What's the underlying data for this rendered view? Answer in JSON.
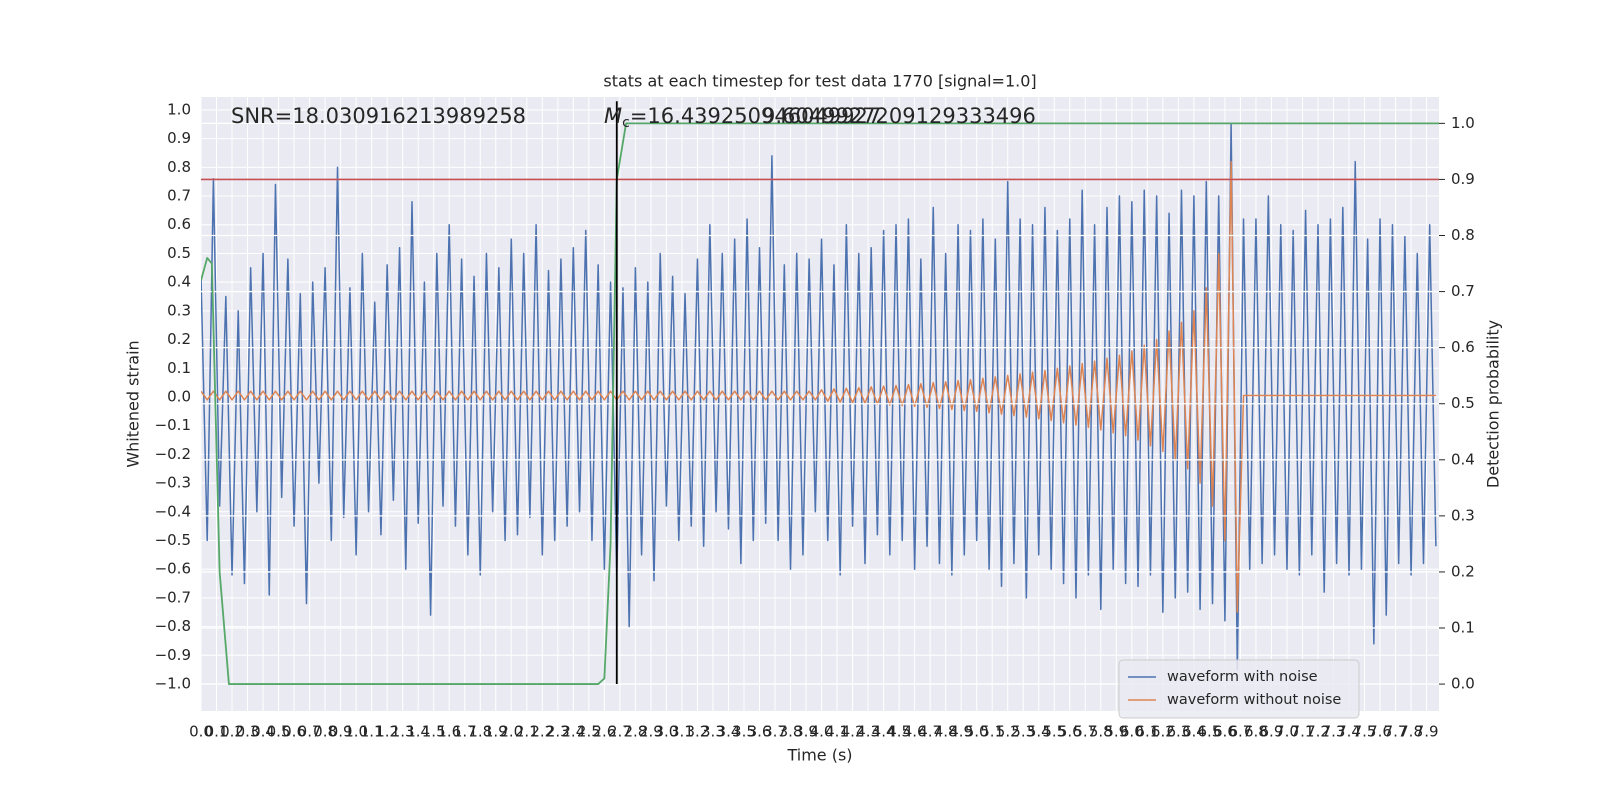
{
  "chart_data": {
    "type": "line",
    "title": "stats at each timestep for test data 1770 [signal=1.0]",
    "xlabel": "Time (s)",
    "ylabel": "Whitened strain",
    "y2label": "Detection probability",
    "annotations": [
      {
        "text": "SNR=18.030916213989258"
      },
      {
        "symbol": "M",
        "subscript": "c",
        "text": "=16.439250946049927"
      },
      {
        "text": "9.6049927209129333496"
      }
    ],
    "grid": true,
    "y2grid": true,
    "legend": "lower right",
    "xlim": [
      0,
      7.98
    ],
    "ylim": [
      -1.094,
      1.045
    ],
    "y2lim": [
      -0.048,
      1.047
    ],
    "xticks": [
      {
        "value": 0,
        "label": "0.0"
      },
      0.1,
      0.2,
      0.3,
      0.4,
      0.5,
      0.6,
      0.7,
      0.8,
      0.9,
      {
        "value": 1,
        "label": "1.0"
      },
      1.1,
      1.2,
      1.3,
      1.4,
      1.5,
      1.6,
      1.7,
      1.8,
      1.9,
      {
        "value": 2,
        "label": "2.0"
      },
      2.1,
      2.2,
      2.3,
      2.4,
      2.5,
      2.6,
      2.7,
      2.8,
      2.9,
      {
        "value": 3,
        "label": "3.0"
      },
      3.1,
      3.2,
      3.3,
      3.4,
      3.5,
      3.6,
      3.7,
      3.8,
      3.9,
      {
        "value": 4,
        "label": "4.0"
      },
      4.1,
      4.2,
      4.3,
      4.4,
      4.5,
      4.6,
      4.7,
      4.8,
      4.9,
      {
        "value": 5,
        "label": "5.0"
      },
      5.1,
      5.2,
      5.3,
      5.4,
      5.5,
      5.6,
      5.7,
      5.8,
      5.9,
      {
        "value": 6,
        "label": "6.0"
      },
      6.1,
      6.2,
      6.3,
      6.4,
      6.5,
      6.6,
      6.7,
      6.8,
      6.9,
      {
        "value": 7,
        "label": "7.0"
      },
      7.1,
      7.2,
      7.3,
      7.4,
      7.5,
      7.6,
      7.7,
      7.8,
      7.9
    ],
    "yticks": [
      {
        "value": -1,
        "label": "−1.0"
      },
      {
        "value": -0.9,
        "label": "−0.9"
      },
      {
        "value": -0.8,
        "label": "−0.8"
      },
      {
        "value": -0.7,
        "label": "−0.7"
      },
      {
        "value": -0.6,
        "label": "−0.6"
      },
      {
        "value": -0.5,
        "label": "−0.5"
      },
      {
        "value": -0.4,
        "label": "−0.4"
      },
      {
        "value": -0.3,
        "label": "−0.3"
      },
      {
        "value": -0.2,
        "label": "−0.2"
      },
      {
        "value": -0.1,
        "label": "−0.1"
      },
      {
        "value": 0,
        "label": "0.0"
      },
      0.1,
      0.2,
      0.3,
      0.4,
      0.5,
      0.6,
      0.7,
      0.8,
      0.9,
      {
        "value": 1,
        "label": "1.0"
      }
    ],
    "y2ticks": [
      {
        "value": 0,
        "label": "0.0"
      },
      0.1,
      0.2,
      0.3,
      0.4,
      0.5,
      0.6,
      0.7,
      0.8,
      0.9,
      {
        "value": 1,
        "label": "1.0"
      }
    ],
    "x": [
      0,
      0.04,
      0.08,
      0.12,
      0.16,
      0.2,
      0.24,
      0.28,
      0.32,
      0.36,
      0.4,
      0.44,
      0.48,
      0.52,
      0.56,
      0.6,
      0.64,
      0.68,
      0.72,
      0.76,
      0.8,
      0.84,
      0.88,
      0.92,
      0.96,
      1,
      1.04,
      1.08,
      1.12,
      1.16,
      1.2,
      1.24,
      1.28,
      1.32,
      1.36,
      1.4,
      1.44,
      1.48,
      1.52,
      1.56,
      1.6,
      1.64,
      1.68,
      1.72,
      1.76,
      1.8,
      1.84,
      1.88,
      1.92,
      1.96,
      2,
      2.04,
      2.08,
      2.12,
      2.16,
      2.2,
      2.24,
      2.28,
      2.32,
      2.36,
      2.4,
      2.44,
      2.48,
      2.52,
      2.56,
      2.6,
      2.64,
      2.68,
      2.72,
      2.76,
      2.8,
      2.84,
      2.88,
      2.92,
      2.96,
      3,
      3.04,
      3.08,
      3.12,
      3.16,
      3.2,
      3.24,
      3.28,
      3.32,
      3.36,
      3.4,
      3.44,
      3.48,
      3.52,
      3.56,
      3.6,
      3.64,
      3.68,
      3.72,
      3.76,
      3.8,
      3.84,
      3.88,
      3.92,
      3.96,
      4,
      4.04,
      4.08,
      4.12,
      4.16,
      4.2,
      4.24,
      4.28,
      4.32,
      4.36,
      4.4,
      4.44,
      4.48,
      4.52,
      4.56,
      4.6,
      4.64,
      4.68,
      4.72,
      4.76,
      4.8,
      4.84,
      4.88,
      4.92,
      4.96,
      5,
      5.04,
      5.08,
      5.12,
      5.16,
      5.2,
      5.24,
      5.28,
      5.32,
      5.36,
      5.4,
      5.44,
      5.48,
      5.52,
      5.56,
      5.6,
      5.64,
      5.68,
      5.72,
      5.76,
      5.8,
      5.84,
      5.88,
      5.92,
      5.96,
      6,
      6.04,
      6.08,
      6.12,
      6.16,
      6.2,
      6.24,
      6.28,
      6.32,
      6.36,
      6.4,
      6.44,
      6.48,
      6.52,
      6.56,
      6.6,
      6.64,
      6.68,
      6.72,
      6.76,
      6.8,
      6.84,
      6.88,
      6.92,
      6.96,
      7,
      7.04,
      7.08,
      7.12,
      7.16,
      7.2,
      7.24,
      7.28,
      7.32,
      7.36,
      7.4,
      7.44,
      7.48,
      7.52,
      7.56,
      7.6,
      7.64,
      7.68,
      7.72,
      7.76,
      7.8,
      7.84,
      7.88,
      7.92,
      7.96
    ],
    "series": [
      {
        "name": "waveform with noise",
        "color": "#4c72b0",
        "values": [
          0.42,
          -0.5,
          0.76,
          -0.38,
          0.35,
          -0.62,
          0.3,
          -0.65,
          0.45,
          -0.4,
          0.5,
          -0.69,
          0.74,
          -0.35,
          0.48,
          -0.45,
          0.36,
          -0.72,
          0.4,
          -0.3,
          0.45,
          -0.5,
          0.8,
          -0.42,
          0.38,
          -0.55,
          0.5,
          -0.4,
          0.33,
          -0.48,
          0.46,
          -0.36,
          0.52,
          -0.6,
          0.68,
          -0.44,
          0.4,
          -0.76,
          0.5,
          -0.38,
          0.6,
          -0.45,
          0.48,
          -0.55,
          0.42,
          -0.62,
          0.5,
          -0.4,
          0.45,
          -0.5,
          0.55,
          -0.48,
          0.5,
          -0.42,
          0.6,
          -0.55,
          0.44,
          -0.5,
          0.48,
          -0.45,
          0.52,
          -0.4,
          0.58,
          -0.5,
          0.46,
          -0.6,
          0.4,
          -0.62,
          0.38,
          -0.8,
          0.45,
          -0.55,
          0.4,
          -0.64,
          0.5,
          -0.38,
          0.42,
          -0.5,
          0.36,
          -0.45,
          0.48,
          -0.52,
          0.6,
          -0.4,
          0.5,
          -0.46,
          0.55,
          -0.58,
          0.62,
          -0.5,
          0.52,
          -0.44,
          0.84,
          -0.5,
          0.46,
          -0.6,
          0.5,
          -0.55,
          0.48,
          -0.4,
          0.55,
          -0.5,
          0.46,
          -0.62,
          0.6,
          -0.45,
          0.5,
          -0.58,
          0.52,
          -0.48,
          0.58,
          -0.55,
          0.6,
          -0.5,
          0.62,
          -0.6,
          0.48,
          -0.52,
          0.66,
          -0.58,
          0.5,
          -0.62,
          0.6,
          -0.55,
          0.58,
          -0.5,
          0.62,
          -0.6,
          0.55,
          -0.66,
          0.75,
          -0.58,
          0.62,
          -0.7,
          0.6,
          -0.55,
          0.66,
          -0.6,
          0.58,
          -0.65,
          0.62,
          -0.7,
          0.72,
          -0.62,
          0.6,
          -0.74,
          0.66,
          -0.6,
          0.7,
          -0.65,
          0.68,
          -0.66,
          0.72,
          -0.62,
          0.7,
          -0.75,
          0.64,
          -0.7,
          0.72,
          -0.68,
          0.7,
          -0.74,
          0.75,
          -0.72,
          0.7,
          -0.78,
          0.95,
          -0.95,
          0.62,
          -0.6,
          0.62,
          -0.58,
          0.7,
          -0.55,
          0.6,
          -0.6,
          0.58,
          -0.62,
          0.65,
          -0.55,
          0.6,
          -0.68,
          0.62,
          -0.58,
          0.66,
          -0.62,
          0.82,
          -0.6,
          0.55,
          -0.86,
          0.62,
          -0.76,
          0.6,
          -0.58,
          0.56,
          -0.62,
          0.5,
          -0.58,
          0.6,
          -0.52
        ]
      },
      {
        "name": "waveform without noise",
        "color": "#dd8452",
        "values": [
          0.02,
          -0.01,
          0.02,
          -0.01,
          0.02,
          -0.01,
          0.02,
          -0.01,
          0.02,
          -0.01,
          0.02,
          -0.01,
          0.02,
          -0.01,
          0.02,
          -0.01,
          0.02,
          -0.01,
          0.02,
          -0.01,
          0.02,
          -0.01,
          0.02,
          -0.01,
          0.02,
          -0.01,
          0.02,
          -0.01,
          0.02,
          -0.01,
          0.02,
          -0.01,
          0.02,
          -0.01,
          0.02,
          -0.01,
          0.02,
          -0.01,
          0.02,
          -0.01,
          0.02,
          -0.01,
          0.02,
          -0.01,
          0.02,
          -0.01,
          0.02,
          -0.01,
          0.02,
          -0.01,
          0.02,
          -0.01,
          0.02,
          -0.01,
          0.02,
          -0.01,
          0.02,
          -0.01,
          0.02,
          -0.01,
          0.02,
          -0.01,
          0.02,
          -0.01,
          0.02,
          -0.01,
          0.02,
          -0.01,
          0.02,
          -0.01,
          0.02,
          -0.01,
          0.02,
          -0.01,
          0.02,
          -0.01,
          0.02,
          -0.01,
          0.02,
          -0.01,
          0.02,
          -0.01,
          0.02,
          -0.01,
          0.02,
          -0.01,
          0.02,
          -0.01,
          0.02,
          -0.01,
          0.02,
          -0.01,
          0.02,
          -0.01,
          0.02,
          -0.01,
          0.02,
          -0.01,
          0.02,
          -0.01,
          0.025,
          -0.015,
          0.028,
          -0.018,
          0.03,
          -0.02,
          0.032,
          -0.022,
          0.035,
          -0.025,
          0.038,
          -0.028,
          0.04,
          -0.03,
          0.043,
          -0.033,
          0.046,
          -0.036,
          0.05,
          -0.04,
          0.053,
          -0.043,
          0.057,
          -0.047,
          0.06,
          -0.05,
          0.065,
          -0.055,
          0.07,
          -0.06,
          0.075,
          -0.065,
          0.08,
          -0.07,
          0.086,
          -0.076,
          0.092,
          -0.082,
          0.1,
          -0.09,
          0.108,
          -0.098,
          0.116,
          -0.106,
          0.125,
          -0.115,
          0.135,
          -0.125,
          0.145,
          -0.135,
          0.16,
          -0.15,
          0.18,
          -0.17,
          0.2,
          -0.19,
          0.23,
          -0.22,
          0.26,
          -0.25,
          0.3,
          -0.3,
          0.38,
          -0.38,
          0.5,
          -0.5,
          0.82,
          -0.75,
          0.005,
          0.005,
          0.005,
          0.005,
          0.005,
          0.005,
          0.005,
          0.005,
          0.005,
          0.005,
          0.005,
          0.005,
          0.005,
          0.005,
          0.005,
          0.005,
          0.005,
          0.005,
          0.005,
          0.005,
          0.005,
          0.005,
          0.005,
          0.005,
          0.005,
          0.005,
          0.005,
          0.005,
          0.005,
          0.005,
          0.005,
          0.005
        ]
      },
      {
        "color": "#55a868",
        "axis": "y2",
        "x": [
          0,
          0.04,
          0.07,
          0.12,
          0.18,
          2.56,
          2.6,
          2.64,
          2.68,
          2.74,
          7.98
        ],
        "values": [
          0.72,
          0.76,
          0.75,
          0.2,
          0,
          0,
          0.01,
          0.25,
          0.9,
          1,
          1
        ]
      }
    ],
    "hlines": [
      {
        "value": 0.9,
        "axis": "y2",
        "color": "#c44e52"
      }
    ],
    "vlines": [
      {
        "x": 2.68,
        "y": [
          -1,
          1.03
        ],
        "color": "#000000"
      }
    ]
  }
}
